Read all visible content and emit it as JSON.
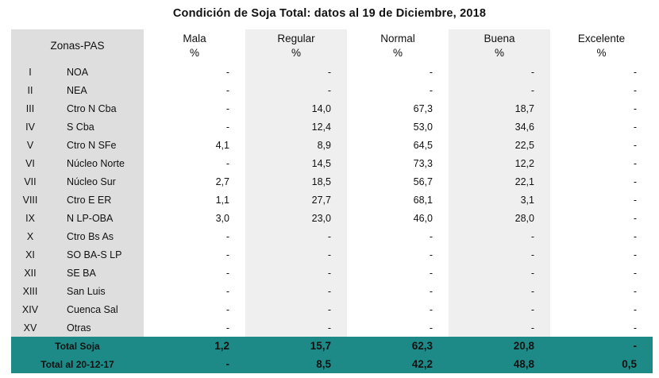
{
  "title": "Condición de Soja Total: datos al 19 de Diciembre, 2018",
  "header": {
    "zona": "Zonas-PAS",
    "cols": [
      {
        "name": "Mala",
        "unit": "%"
      },
      {
        "name": "Regular",
        "unit": "%"
      },
      {
        "name": "Normal",
        "unit": "%"
      },
      {
        "name": "Buena",
        "unit": "%"
      },
      {
        "name": "Excelente",
        "unit": "%"
      }
    ]
  },
  "rows": [
    {
      "roman": "I",
      "zona": "NOA",
      "values": [
        "-",
        "-",
        "-",
        "-",
        "-"
      ]
    },
    {
      "roman": "II",
      "zona": "NEA",
      "values": [
        "-",
        "-",
        "-",
        "-",
        "-"
      ]
    },
    {
      "roman": "III",
      "zona": "Ctro N Cba",
      "values": [
        "-",
        "14,0",
        "67,3",
        "18,7",
        "-"
      ]
    },
    {
      "roman": "IV",
      "zona": "S Cba",
      "values": [
        "-",
        "12,4",
        "53,0",
        "34,6",
        "-"
      ]
    },
    {
      "roman": "V",
      "zona": "Ctro N SFe",
      "values": [
        "4,1",
        "8,9",
        "64,5",
        "22,5",
        "-"
      ]
    },
    {
      "roman": "VI",
      "zona": "Núcleo Norte",
      "values": [
        "-",
        "14,5",
        "73,3",
        "12,2",
        "-"
      ]
    },
    {
      "roman": "VII",
      "zona": "Núcleo Sur",
      "values": [
        "2,7",
        "18,5",
        "56,7",
        "22,1",
        "-"
      ]
    },
    {
      "roman": "VIII",
      "zona": "Ctro E ER",
      "values": [
        "1,1",
        "27,7",
        "68,1",
        "3,1",
        "-"
      ]
    },
    {
      "roman": "IX",
      "zona": "N LP-OBA",
      "values": [
        "3,0",
        "23,0",
        "46,0",
        "28,0",
        "-"
      ]
    },
    {
      "roman": "X",
      "zona": "Ctro Bs As",
      "values": [
        "-",
        "-",
        "-",
        "-",
        "-"
      ]
    },
    {
      "roman": "XI",
      "zona": "SO BA-S LP",
      "values": [
        "-",
        "-",
        "-",
        "-",
        "-"
      ]
    },
    {
      "roman": "XII",
      "zona": "SE BA",
      "values": [
        "-",
        "-",
        "-",
        "-",
        "-"
      ]
    },
    {
      "roman": "XIII",
      "zona": "San Luis",
      "values": [
        "-",
        "-",
        "-",
        "-",
        "-"
      ]
    },
    {
      "roman": "XIV",
      "zona": "Cuenca Sal",
      "values": [
        "-",
        "-",
        "-",
        "-",
        "-"
      ]
    },
    {
      "roman": "XV",
      "zona": "Otras",
      "values": [
        "-",
        "-",
        "-",
        "-",
        "-"
      ]
    }
  ],
  "totals": [
    {
      "label": "Total Soja",
      "values": [
        "1,2",
        "15,7",
        "62,3",
        "20,8",
        "-"
      ]
    },
    {
      "label": "Total al 20-12-17",
      "values": [
        "-",
        "8,5",
        "42,2",
        "48,8",
        "0,5"
      ]
    }
  ],
  "colors": {
    "zone_bg": "#dedede",
    "shade_bg": "#efefef",
    "footer_bg": "#1e8a87"
  }
}
